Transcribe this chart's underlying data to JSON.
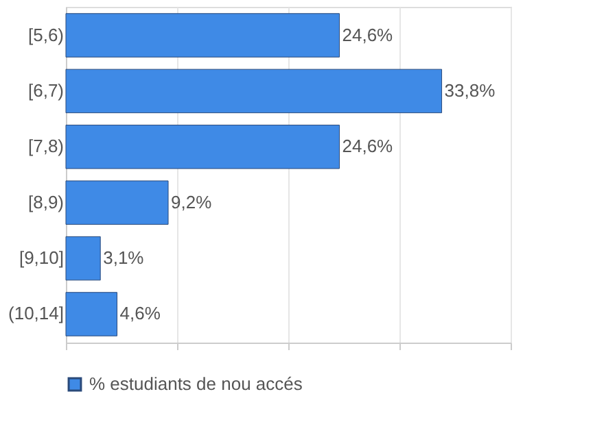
{
  "chart_data": {
    "type": "bar",
    "orientation": "horizontal",
    "categories": [
      "[5,6)",
      "[6,7)",
      "[7,8)",
      "[8,9)",
      "[9,10]",
      "(10,14]"
    ],
    "series": [
      {
        "name": "% estudiants de nou accés",
        "color": "#3f8ae6",
        "values": [
          24.6,
          33.8,
          24.6,
          9.2,
          3.1,
          4.6
        ],
        "value_labels": [
          "24,6%",
          "33,8%",
          "24,6%",
          "9,2%",
          "3,1%",
          "4,6%"
        ]
      }
    ],
    "xlim": [
      0,
      40
    ],
    "xticks": [
      {
        "value": 0,
        "label": null
      },
      {
        "value": 10,
        "label": null
      },
      {
        "value": 20,
        "label": null
      },
      {
        "value": 30,
        "label": null
      },
      {
        "value": 40,
        "label": null
      }
    ],
    "tick_labels": "y",
    "grid": "x",
    "legend": "bottom"
  }
}
